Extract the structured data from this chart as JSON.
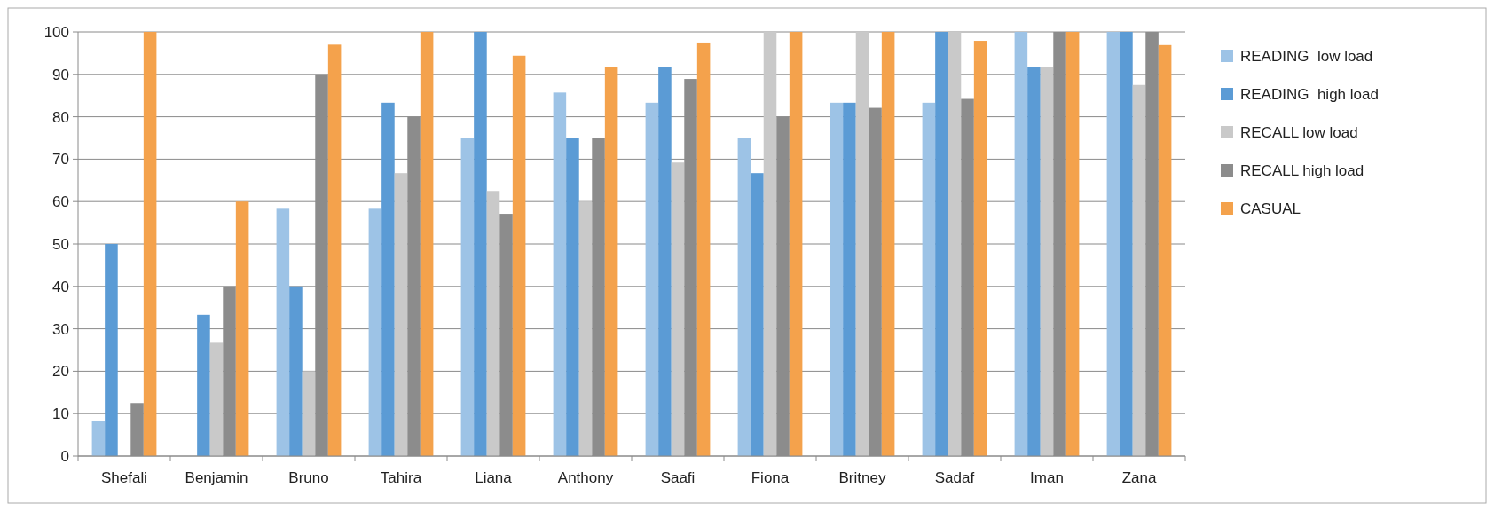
{
  "chart_data": {
    "type": "bar",
    "categories": [
      "Shefali",
      "Benjamin",
      "Bruno",
      "Tahira",
      "Liana",
      "Anthony",
      "Saafi",
      "Fiona",
      "Britney",
      "Sadaf",
      "Iman",
      "Zana"
    ],
    "series": [
      {
        "name": "READING  low load",
        "color": "#9dc3e6",
        "values": [
          8.3,
          0,
          58.3,
          58.3,
          75,
          85.7,
          83.3,
          75,
          83.3,
          83.3,
          100,
          100
        ]
      },
      {
        "name": "READING  high load",
        "color": "#5b9bd5",
        "values": [
          50,
          33.3,
          40,
          83.3,
          100,
          75,
          91.7,
          66.7,
          83.3,
          100,
          91.7,
          100
        ]
      },
      {
        "name": "RECALL low load",
        "color": "#c9c9c9",
        "values": [
          0,
          26.7,
          20,
          66.7,
          62.5,
          60,
          69.2,
          100,
          100,
          100,
          91.7,
          87.5
        ]
      },
      {
        "name": "RECALL high load",
        "color": "#8c8c8c",
        "values": [
          12.5,
          40,
          90,
          80,
          57.1,
          75,
          88.9,
          80,
          82.1,
          84.2,
          100,
          100
        ]
      },
      {
        "name": "CASUAL",
        "color": "#f4a24c",
        "values": [
          100,
          60,
          97,
          100,
          94.4,
          91.7,
          97.5,
          100,
          100,
          97.9,
          100,
          96.9
        ]
      }
    ],
    "ylim": [
      0,
      100
    ],
    "yticks": [
      0,
      10,
      20,
      30,
      40,
      50,
      60,
      70,
      80,
      90,
      100
    ],
    "grid": "y",
    "legend": "right"
  }
}
